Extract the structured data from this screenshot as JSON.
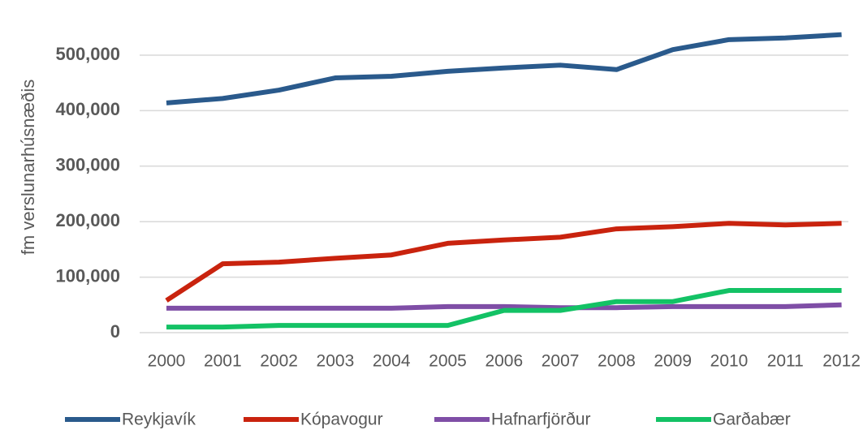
{
  "chart_data": {
    "type": "line",
    "y_label": "fm verslunarhúsnæðis",
    "categories": [
      "2000",
      "2001",
      "2002",
      "2003",
      "2004",
      "2005",
      "2006",
      "2007",
      "2008",
      "2009",
      "2010",
      "2011",
      "2012"
    ],
    "series": [
      {
        "name": "Reykjavík",
        "color": "#2a5a8c",
        "values": [
          414000,
          422000,
          437000,
          459000,
          462000,
          471000,
          477000,
          482000,
          474000,
          510000,
          528000,
          531000,
          537000
        ]
      },
      {
        "name": "Kópavogur",
        "color": "#c9230e",
        "values": [
          58000,
          124000,
          127000,
          134000,
          140000,
          161000,
          167000,
          172000,
          187000,
          191000,
          197000,
          194000,
          197000
        ]
      },
      {
        "name": "Hafnarfjörður",
        "color": "#7f4ea6",
        "values": [
          44000,
          44000,
          44000,
          44000,
          44000,
          47000,
          47000,
          45000,
          45000,
          47000,
          47000,
          47000,
          50000
        ]
      },
      {
        "name": "Garðabær",
        "color": "#13c265",
        "values": [
          10000,
          10000,
          13000,
          13000,
          13000,
          13000,
          40000,
          40000,
          56000,
          56000,
          76000,
          76000,
          76000
        ]
      }
    ],
    "ylim": [
      0,
      600000
    ],
    "yticks": [
      0,
      {
        "value": 100000,
        "label": "100,000"
      },
      {
        "value": 200000,
        "label": "200,000"
      },
      {
        "value": 300000,
        "label": "300,000"
      },
      {
        "value": 400000,
        "label": "400,000"
      },
      {
        "value": 500000,
        "label": "500,000"
      }
    ],
    "grid": true
  }
}
